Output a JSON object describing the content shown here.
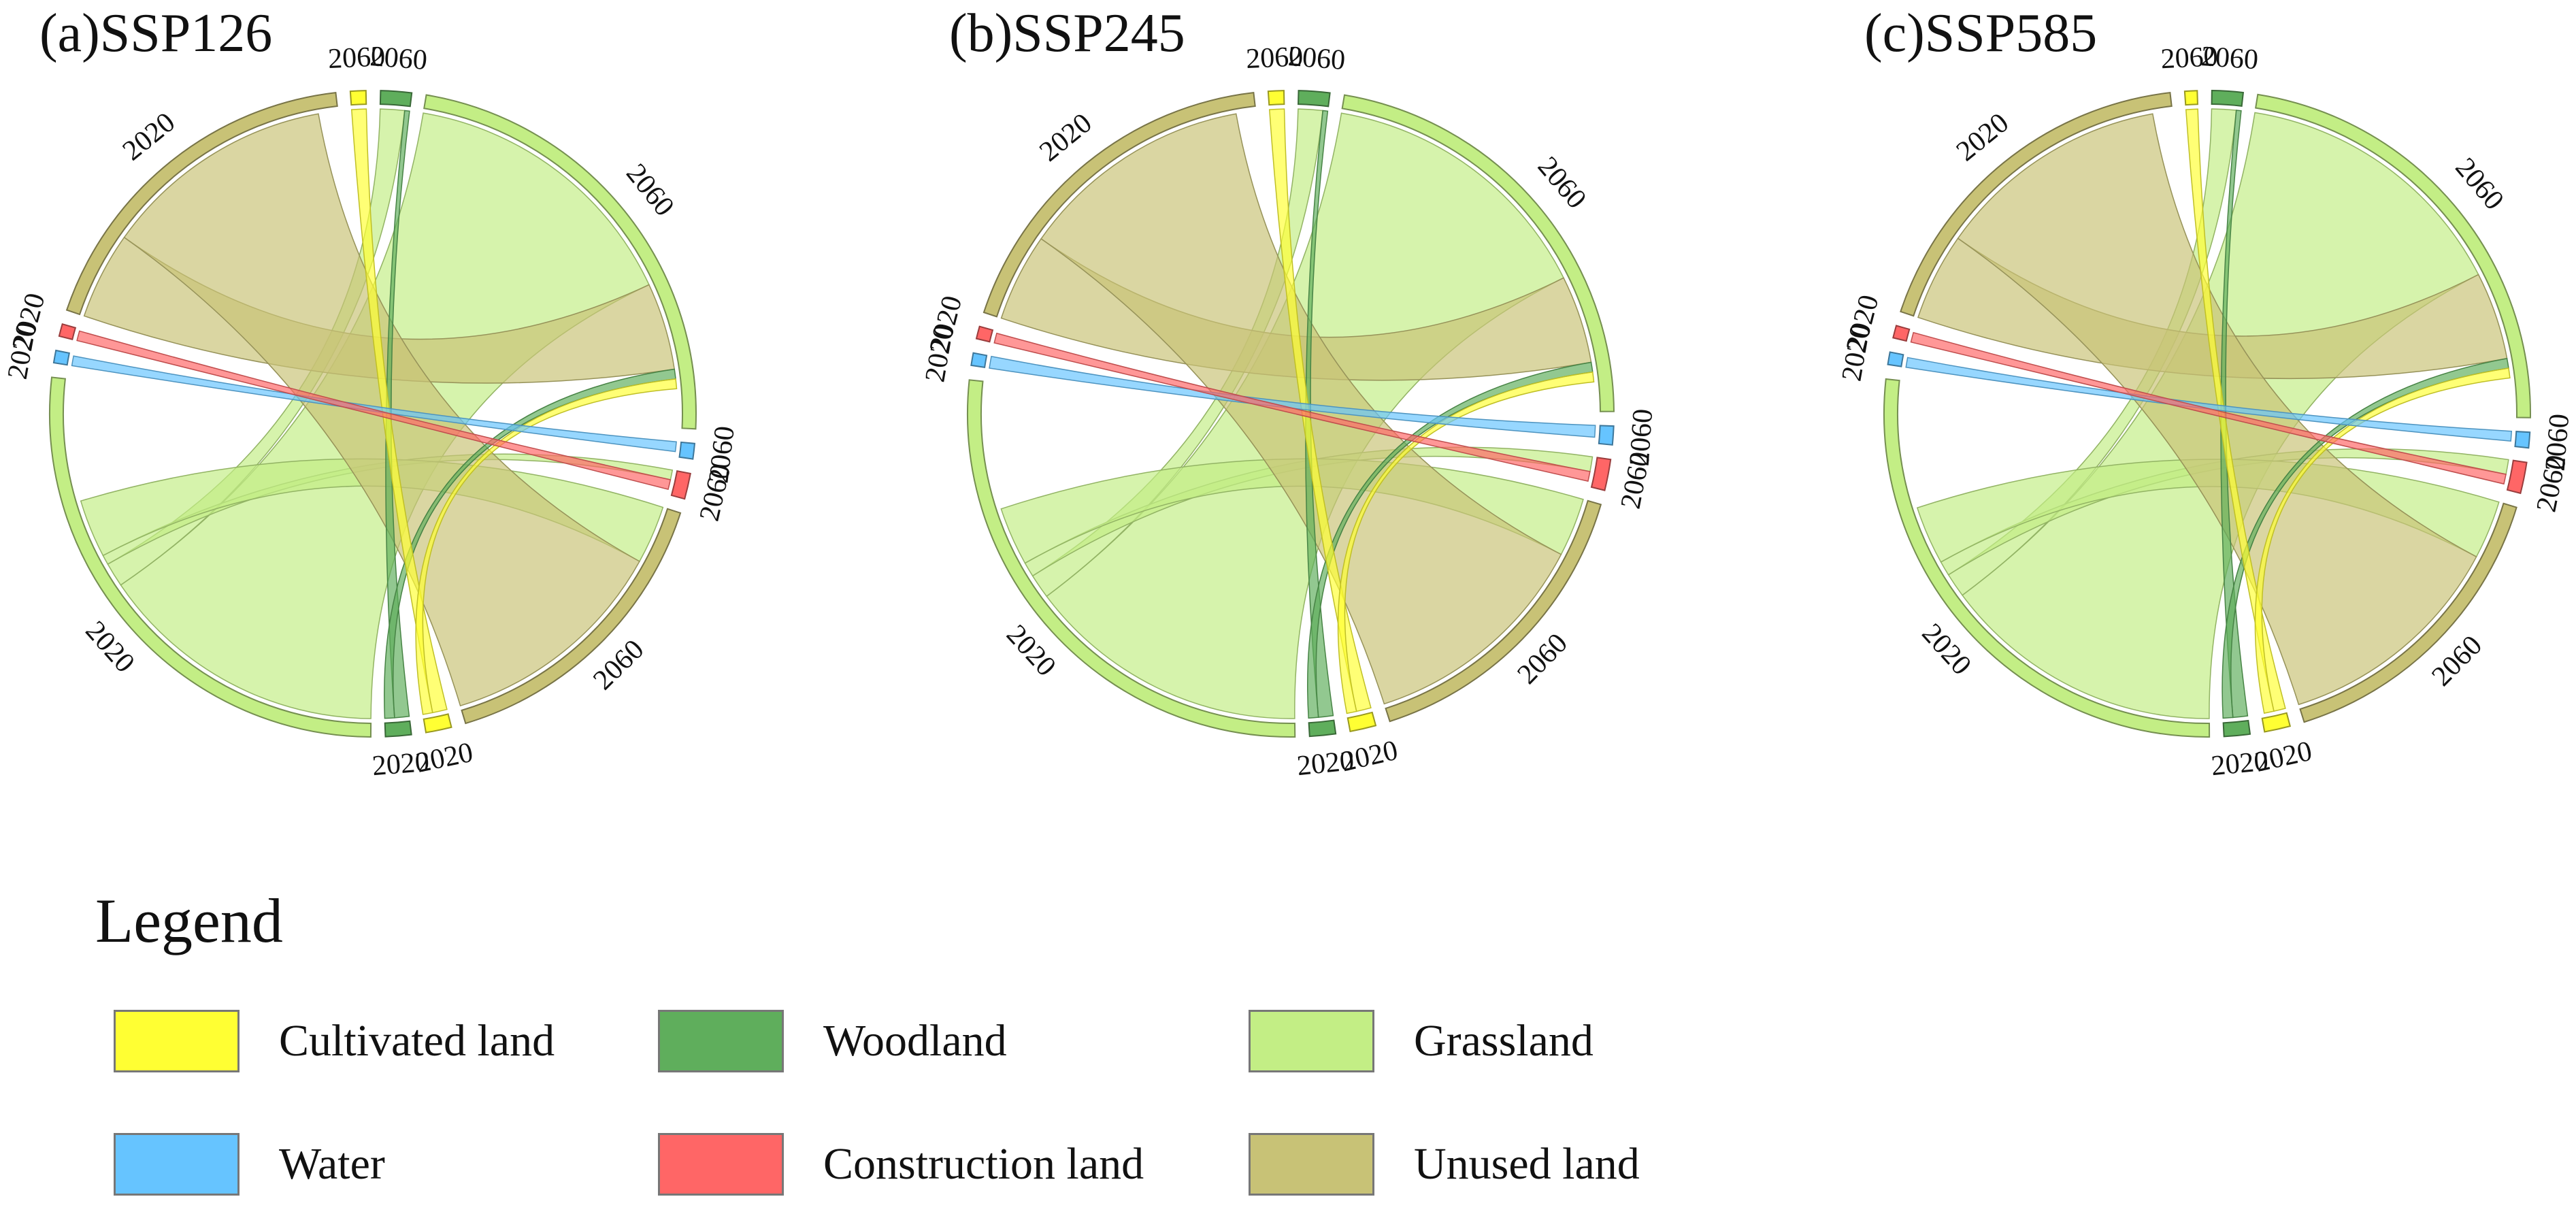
{
  "chart_data": [
    {
      "type": "chord",
      "title": "(a)SSP126",
      "segments": [
        {
          "class": "Cultivated land",
          "year": "2060",
          "value": 1.5
        },
        {
          "class": "Woodland",
          "year": "2060",
          "value": 3
        },
        {
          "class": "Grassland",
          "year": "2060",
          "value": 45
        },
        {
          "class": "Water",
          "year": "2060",
          "value": 1.5
        },
        {
          "class": "Construction land",
          "year": "2060",
          "value": 2.5
        },
        {
          "class": "Unused land",
          "year": "2060",
          "value": 30
        },
        {
          "class": "Cultivated land",
          "year": "2020",
          "value": 2.5
        },
        {
          "class": "Woodland",
          "year": "2020",
          "value": 2.5
        },
        {
          "class": "Grassland",
          "year": "2020",
          "value": 52
        },
        {
          "class": "Water",
          "year": "2020",
          "value": 1.2
        },
        {
          "class": "Construction land",
          "year": "2020",
          "value": 1.2
        },
        {
          "class": "Unused land",
          "year": "2020",
          "value": 35
        }
      ],
      "flows": [
        {
          "from": "Grassland 2020",
          "to": "Grassland 2060",
          "value": 30
        },
        {
          "from": "Grassland 2020",
          "to": "Woodland 2060",
          "value": 2.5
        },
        {
          "from": "Grassland 2020",
          "to": "Construction land 2060",
          "value": 1
        },
        {
          "from": "Grassland 2020",
          "to": "Unused land 2060",
          "value": 6
        },
        {
          "from": "Unused land 2020",
          "to": "Grassland 2060",
          "value": 9
        },
        {
          "from": "Unused land 2020",
          "to": "Unused land 2060",
          "value": 24
        },
        {
          "from": "Woodland 2020",
          "to": "Woodland 2060",
          "value": 1.5
        },
        {
          "from": "Woodland 2020",
          "to": "Grassland 2060",
          "value": 1
        },
        {
          "from": "Cultivated land 2020",
          "to": "Cultivated land 2060",
          "value": 1.5
        },
        {
          "from": "Cultivated land 2020",
          "to": "Grassland 2060",
          "value": 1
        },
        {
          "from": "Water 2020",
          "to": "Water 2060",
          "value": 1
        },
        {
          "from": "Construction land 2020",
          "to": "Construction land 2060",
          "value": 1
        }
      ]
    },
    {
      "type": "chord",
      "title": "(b)SSP245",
      "segments": [
        {
          "class": "Cultivated land",
          "year": "2060",
          "value": 1.5
        },
        {
          "class": "Woodland",
          "year": "2060",
          "value": 3
        },
        {
          "class": "Grassland",
          "year": "2060",
          "value": 43
        },
        {
          "class": "Water",
          "year": "2060",
          "value": 1.8
        },
        {
          "class": "Construction land",
          "year": "2060",
          "value": 3
        },
        {
          "class": "Unused land",
          "year": "2060",
          "value": 30
        },
        {
          "class": "Cultivated land",
          "year": "2020",
          "value": 2.5
        },
        {
          "class": "Woodland",
          "year": "2020",
          "value": 2.5
        },
        {
          "class": "Grassland",
          "year": "2020",
          "value": 52
        },
        {
          "class": "Water",
          "year": "2020",
          "value": 1.2
        },
        {
          "class": "Construction land",
          "year": "2020",
          "value": 1.2
        },
        {
          "class": "Unused land",
          "year": "2020",
          "value": 35
        }
      ],
      "flows": [
        {
          "from": "Grassland 2020",
          "to": "Grassland 2060",
          "value": 29
        },
        {
          "from": "Grassland 2020",
          "to": "Woodland 2060",
          "value": 2.5
        },
        {
          "from": "Grassland 2020",
          "to": "Construction land 2060",
          "value": 1.5
        },
        {
          "from": "Grassland 2020",
          "to": "Unused land 2060",
          "value": 6
        },
        {
          "from": "Unused land 2020",
          "to": "Grassland 2060",
          "value": 9
        },
        {
          "from": "Unused land 2020",
          "to": "Unused land 2060",
          "value": 24
        },
        {
          "from": "Woodland 2020",
          "to": "Woodland 2060",
          "value": 1.5
        },
        {
          "from": "Woodland 2020",
          "to": "Grassland 2060",
          "value": 1
        },
        {
          "from": "Cultivated land 2020",
          "to": "Cultivated land 2060",
          "value": 1.5
        },
        {
          "from": "Cultivated land 2020",
          "to": "Grassland 2060",
          "value": 1
        },
        {
          "from": "Water 2020",
          "to": "Water 2060",
          "value": 1.2
        },
        {
          "from": "Construction land 2020",
          "to": "Construction land 2060",
          "value": 1
        }
      ]
    },
    {
      "type": "chord",
      "title": "(c)SSP585",
      "segments": [
        {
          "class": "Cultivated land",
          "year": "2060",
          "value": 1.2
        },
        {
          "class": "Woodland",
          "year": "2060",
          "value": 3
        },
        {
          "class": "Grassland",
          "year": "2060",
          "value": 44
        },
        {
          "class": "Water",
          "year": "2060",
          "value": 1.5
        },
        {
          "class": "Construction land",
          "year": "2060",
          "value": 3
        },
        {
          "class": "Unused land",
          "year": "2060",
          "value": 30
        },
        {
          "class": "Cultivated land",
          "year": "2020",
          "value": 2.5
        },
        {
          "class": "Woodland",
          "year": "2020",
          "value": 2.5
        },
        {
          "class": "Grassland",
          "year": "2020",
          "value": 52
        },
        {
          "class": "Water",
          "year": "2020",
          "value": 1.2
        },
        {
          "class": "Construction land",
          "year": "2020",
          "value": 1.2
        },
        {
          "class": "Unused land",
          "year": "2020",
          "value": 35
        }
      ],
      "flows": [
        {
          "from": "Grassland 2020",
          "to": "Grassland 2060",
          "value": 29
        },
        {
          "from": "Grassland 2020",
          "to": "Woodland 2060",
          "value": 2.5
        },
        {
          "from": "Grassland 2020",
          "to": "Construction land 2060",
          "value": 1.5
        },
        {
          "from": "Grassland 2020",
          "to": "Unused land 2060",
          "value": 6
        },
        {
          "from": "Unused land 2020",
          "to": "Grassland 2060",
          "value": 9
        },
        {
          "from": "Unused land 2020",
          "to": "Unused land 2060",
          "value": 24
        },
        {
          "from": "Woodland 2020",
          "to": "Woodland 2060",
          "value": 1.5
        },
        {
          "from": "Woodland 2020",
          "to": "Grassland 2060",
          "value": 1
        },
        {
          "from": "Cultivated land 2020",
          "to": "Cultivated land 2060",
          "value": 1.2
        },
        {
          "from": "Cultivated land 2020",
          "to": "Grassland 2060",
          "value": 1
        },
        {
          "from": "Water 2020",
          "to": "Water 2060",
          "value": 1
        },
        {
          "from": "Construction land 2020",
          "to": "Construction land 2060",
          "value": 1
        }
      ]
    }
  ],
  "legend": {
    "title": "Legend",
    "items": [
      {
        "label": "Cultivated land",
        "color": "#ffff33"
      },
      {
        "label": "Woodland",
        "color": "#5fae5c"
      },
      {
        "label": "Grassland",
        "color": "#c3ee85"
      },
      {
        "label": "Water",
        "color": "#66c4ff"
      },
      {
        "label": "Construction land",
        "color": "#ff6666"
      },
      {
        "label": "Unused land",
        "color": "#c8c276"
      }
    ]
  }
}
